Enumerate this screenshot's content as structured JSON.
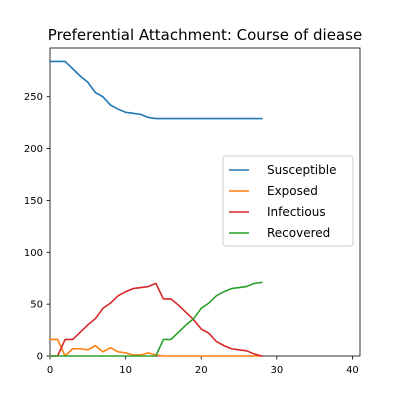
{
  "chart_data": {
    "type": "line",
    "title": "Preferential Attachment: Course of diease",
    "xlabel": "",
    "ylabel": "",
    "xlim": [
      0,
      41
    ],
    "ylim": [
      0,
      297
    ],
    "xticks": [
      0,
      10,
      20,
      30,
      40
    ],
    "yticks": [
      0,
      50,
      100,
      150,
      200,
      250
    ],
    "grid": false,
    "legend_position": "center-right",
    "x": [
      0,
      1,
      2,
      3,
      4,
      5,
      6,
      7,
      8,
      9,
      10,
      11,
      12,
      13,
      14,
      15,
      16,
      17,
      18,
      19,
      20,
      21,
      22,
      23,
      24,
      25,
      26,
      27,
      28
    ],
    "series": [
      {
        "name": "Susceptible",
        "color": "#1f77b4",
        "values": [
          284,
          284,
          284,
          277,
          270,
          264,
          254,
          250,
          242,
          238,
          235,
          234,
          233,
          230,
          229,
          229,
          229,
          229,
          229,
          229,
          229,
          229,
          229,
          229,
          229,
          229,
          229,
          229,
          229
        ]
      },
      {
        "name": "Exposed",
        "color": "#ff7f0e",
        "values": [
          16,
          16,
          0,
          7,
          7,
          6,
          10,
          4,
          8,
          4,
          3,
          1,
          1,
          3,
          1,
          0,
          0,
          0,
          0,
          0,
          0,
          0,
          0,
          0,
          0,
          0,
          0,
          0,
          0
        ]
      },
      {
        "name": "Infectious",
        "color": "#d62728",
        "values": [
          0,
          0,
          16,
          16,
          23,
          30,
          36,
          46,
          51,
          58,
          62,
          65,
          66,
          67,
          70,
          55,
          55,
          49,
          42,
          35,
          26,
          22,
          14,
          10,
          7,
          6,
          5,
          2,
          0
        ]
      },
      {
        "name": "Recovered",
        "color": "#2ca02c",
        "values": [
          0,
          0,
          0,
          0,
          0,
          0,
          0,
          0,
          0,
          0,
          0,
          0,
          0,
          0,
          0,
          16,
          16,
          23,
          30,
          36,
          46,
          51,
          58,
          62,
          65,
          66,
          67,
          70,
          71
        ]
      }
    ]
  }
}
